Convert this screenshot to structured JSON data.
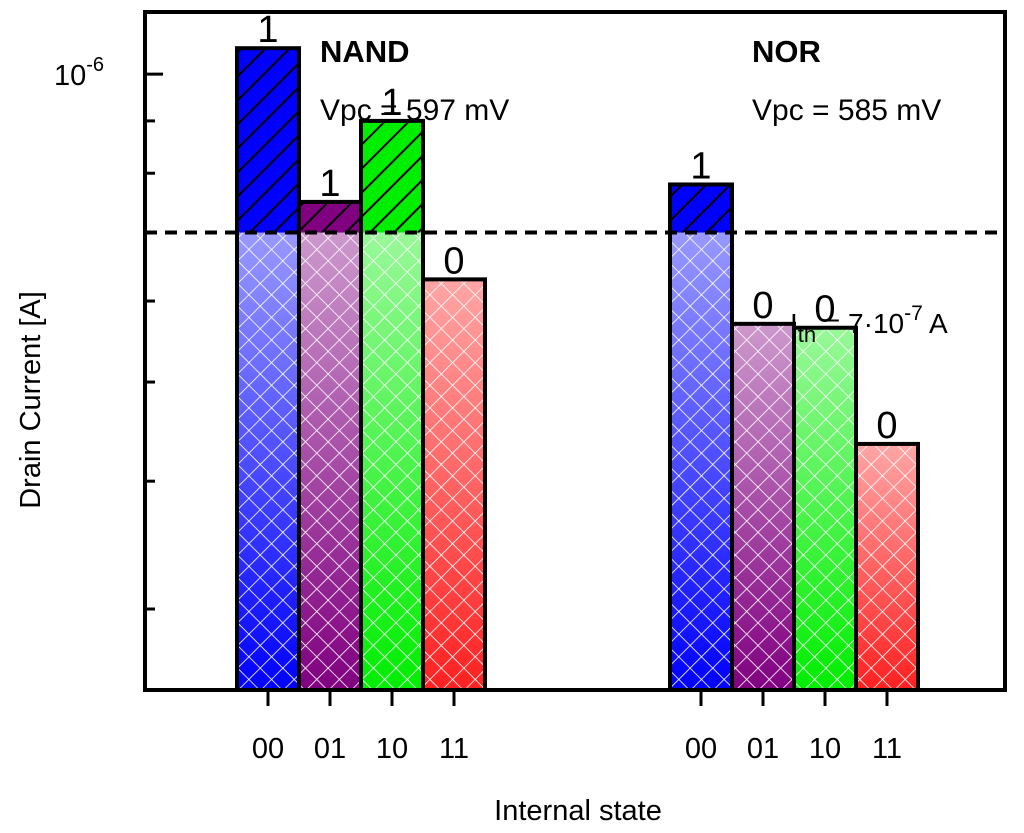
{
  "chart_data": {
    "type": "bar",
    "xlabel": "Internal state",
    "ylabel": "Drain Current [A]",
    "yscale": "log",
    "ylim": [
      2.5e-07,
      1.15e-06
    ],
    "y_tick_label": {
      "base": "10",
      "exp": "-6",
      "value": 1e-06
    },
    "minor_ticks": [
      9e-07,
      8e-07,
      7e-07,
      6e-07,
      5e-07,
      4e-07,
      3e-07
    ],
    "threshold": {
      "value": 7e-07,
      "label_prefix": "I",
      "label_sub": "th",
      "label_mid": " = 7·10",
      "label_exp": "-7",
      "label_suffix": " A"
    },
    "groups": [
      {
        "name": "NAND",
        "annotation": "Vpc = 597 mV",
        "bars": [
          {
            "state": "00",
            "value": 1.06e-06,
            "output": "1",
            "color": "#0000ff"
          },
          {
            "state": "01",
            "value": 7.5e-07,
            "output": "1",
            "color": "#800080"
          },
          {
            "state": "10",
            "value": 9e-07,
            "output": "1",
            "color": "#00ee00"
          },
          {
            "state": "11",
            "value": 6.3e-07,
            "output": "0",
            "color": "#ff2020"
          }
        ]
      },
      {
        "name": "NOR",
        "annotation": "Vpc = 585 mV",
        "bars": [
          {
            "state": "00",
            "value": 7.8e-07,
            "output": "1",
            "color": "#0000ff"
          },
          {
            "state": "01",
            "value": 5.7e-07,
            "output": "0",
            "color": "#800080"
          },
          {
            "state": "10",
            "value": 5.65e-07,
            "output": "0",
            "color": "#00ee00"
          },
          {
            "state": "11",
            "value": 4.35e-07,
            "output": "0",
            "color": "#ff2020"
          }
        ]
      }
    ],
    "grid": false,
    "legend": "none"
  }
}
